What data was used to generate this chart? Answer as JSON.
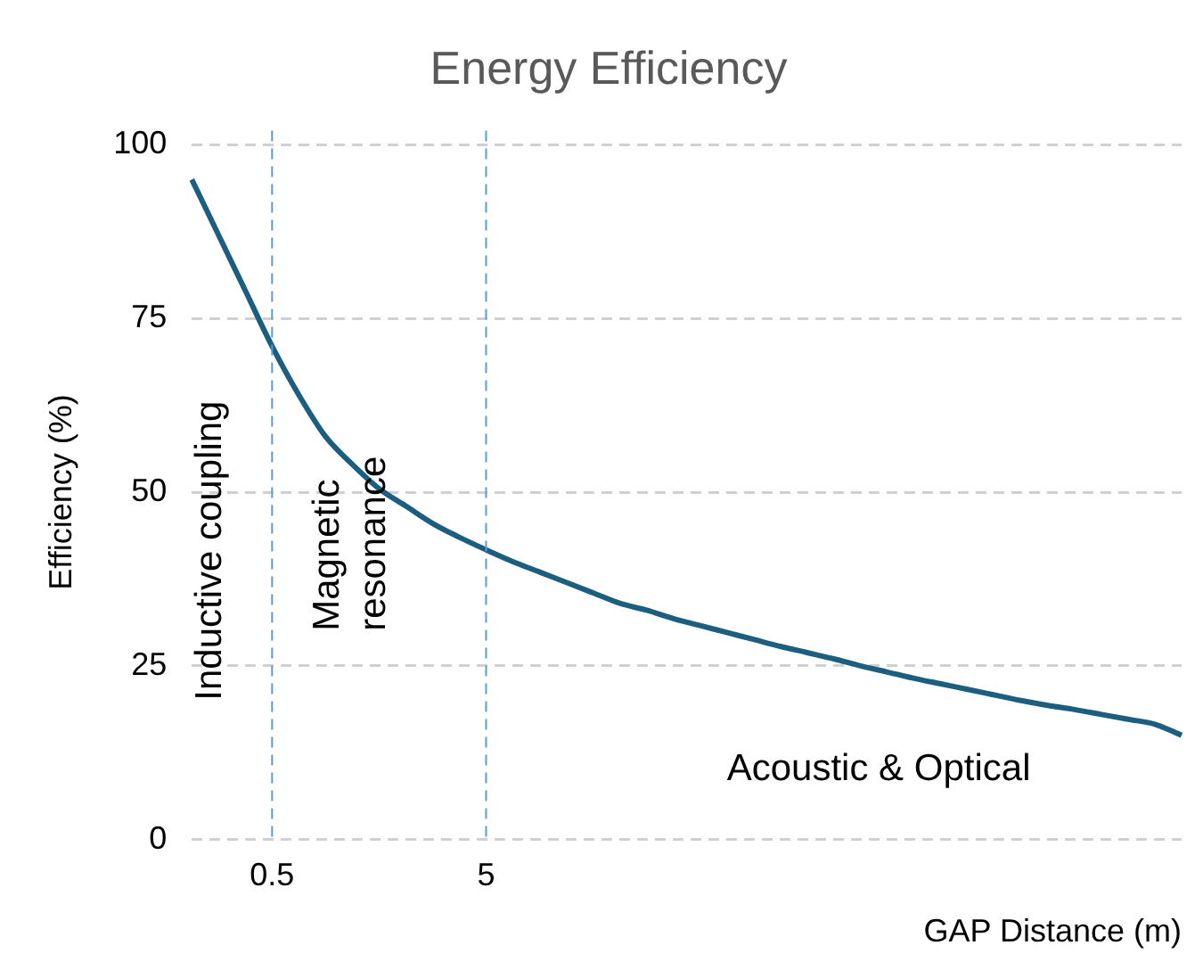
{
  "chart_data": {
    "type": "line",
    "title": "Energy Efficiency",
    "xlabel": "GAP Distance (m)",
    "ylabel": "Efficiency (%)",
    "categories": [
      null,
      null,
      null,
      "0.5",
      null,
      null,
      null,
      null,
      null,
      null,
      null,
      "5",
      null,
      null,
      null,
      null,
      null,
      null,
      null,
      null,
      null,
      null,
      null,
      null,
      null,
      null,
      null,
      null,
      null,
      null,
      null,
      null,
      null,
      null,
      null,
      null,
      null,
      null
    ],
    "series": [
      {
        "color": "#1b5e80",
        "values": [
          95,
          87,
          79,
          71,
          64,
          58,
          54,
          50.5,
          48,
          45.5,
          43.5,
          41.7,
          40,
          38.5,
          37,
          35.5,
          34,
          33,
          31.8,
          30.8,
          29.8,
          28.8,
          27.8,
          26.9,
          26,
          25,
          24.1,
          23.2,
          22.4,
          21.6,
          20.8,
          20,
          19.3,
          18.7,
          18,
          17.3,
          16.6,
          15
        ]
      }
    ],
    "ylim": [
      0,
      100
    ],
    "yticks": [
      0,
      25,
      50,
      75,
      100
    ],
    "grid": "y",
    "legend": false,
    "marker": "none",
    "line_style": "solid",
    "ref_lines": [
      {
        "axis": "x",
        "value": "0.5",
        "color": "#5b9bd5",
        "line_style": "dashed"
      },
      {
        "axis": "x",
        "value": "5",
        "color": "#5b9bd5",
        "line_style": "dashed"
      }
    ],
    "annotations": [
      "Inductive coupling",
      "Magnetic resonance",
      "Acoustic & Optical"
    ]
  }
}
